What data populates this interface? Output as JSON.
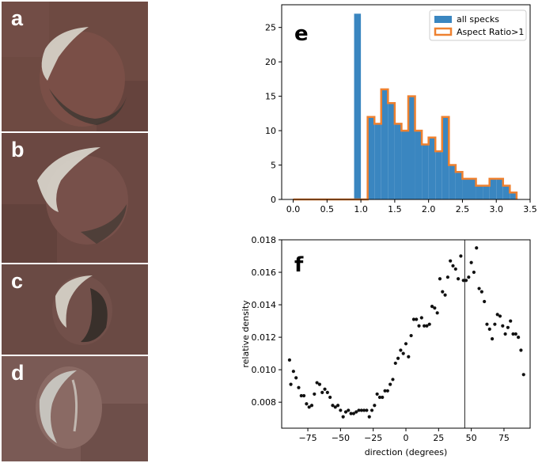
{
  "panels": {
    "a": "a",
    "b": "b",
    "c": "c",
    "d": "d"
  },
  "colors": {
    "background_rock": "#6e4a42",
    "crater_interior": "#7a4f47",
    "bright_ejecta": "#d9d6cc",
    "shadow": "#3a3530",
    "bar_fill": "#3a86c0",
    "step_outline": "#ee8130",
    "scatter_point": "#111111",
    "axis": "#000000"
  },
  "chart_data": [
    {
      "panel_label": "e",
      "type": "bar",
      "title": "",
      "xlabel": "",
      "ylabel": "",
      "xlim": [
        -0.17,
        3.5
      ],
      "ylim": [
        0,
        28.3
      ],
      "x_ticks": [
        0.0,
        0.5,
        1.0,
        1.5,
        2.0,
        2.5,
        3.0,
        3.5
      ],
      "x_tick_labels": [
        "0.0",
        "0.5",
        "1.0",
        "1.5",
        "2.0",
        "2.5",
        "3.0",
        "3.5"
      ],
      "y_ticks": [
        0,
        5,
        10,
        15,
        20,
        25
      ],
      "y_tick_labels": [
        "0",
        "5",
        "10",
        "15",
        "20",
        "25"
      ],
      "bin_width": 0.1,
      "legend": {
        "placement": "top-right",
        "entries": [
          "all specks",
          "Aspect Ratio>1"
        ]
      },
      "series": [
        {
          "name": "all specks",
          "style": "filled bars",
          "bin_starts": [
            0.9,
            1.0,
            1.1,
            1.2,
            1.3,
            1.4,
            1.5,
            1.6,
            1.7,
            1.8,
            1.9,
            2.0,
            2.1,
            2.2,
            2.3,
            2.4,
            2.5,
            2.6,
            2.7,
            2.8,
            2.9,
            3.0,
            3.1,
            3.2
          ],
          "values": [
            27,
            0,
            12,
            11,
            16,
            14,
            11,
            10,
            15,
            10,
            8,
            9,
            7,
            12,
            5,
            4,
            3,
            3,
            2,
            2,
            3,
            3,
            2,
            1
          ]
        },
        {
          "name": "Aspect Ratio>1",
          "style": "step outline",
          "bin_starts": [
            0.0,
            0.1,
            0.2,
            0.3,
            0.4,
            0.5,
            0.6,
            0.7,
            0.8,
            0.9,
            1.0,
            1.1,
            1.2,
            1.3,
            1.4,
            1.5,
            1.6,
            1.7,
            1.8,
            1.9,
            2.0,
            2.1,
            2.2,
            2.3,
            2.4,
            2.5,
            2.6,
            2.7,
            2.8,
            2.9,
            3.0,
            3.1,
            3.2
          ],
          "values": [
            0,
            0,
            0,
            0,
            0,
            0,
            0,
            0,
            0,
            0,
            0,
            12,
            11,
            16,
            14,
            11,
            10,
            15,
            10,
            8,
            9,
            7,
            12,
            5,
            4,
            3,
            3,
            2,
            2,
            3,
            3,
            2,
            1
          ]
        }
      ]
    },
    {
      "panel_label": "f",
      "type": "scatter",
      "title": "",
      "xlabel": "direction (degrees)",
      "ylabel": "relative density",
      "xlim": [
        -95,
        95
      ],
      "ylim": [
        0.0064,
        0.018
      ],
      "x_ticks": [
        -75,
        -50,
        -25,
        0,
        25,
        50,
        75
      ],
      "x_tick_labels": [
        "−75",
        "−50",
        "−25",
        "0",
        "25",
        "50",
        "75"
      ],
      "y_ticks": [
        0.008,
        0.01,
        0.012,
        0.014,
        0.016,
        0.018
      ],
      "y_tick_labels": [
        "0.008",
        "0.010",
        "0.012",
        "0.014",
        "0.016",
        "0.018"
      ],
      "vertical_line_x": 45,
      "points": [
        [
          -89,
          0.0106
        ],
        [
          -88,
          0.0091
        ],
        [
          -86,
          0.0099
        ],
        [
          -84,
          0.0095
        ],
        [
          -82,
          0.0089
        ],
        [
          -80,
          0.0084
        ],
        [
          -78,
          0.0084
        ],
        [
          -76,
          0.0079
        ],
        [
          -74,
          0.0077
        ],
        [
          -72,
          0.0078
        ],
        [
          -70,
          0.0085
        ],
        [
          -68,
          0.0092
        ],
        [
          -66,
          0.0091
        ],
        [
          -64,
          0.0086
        ],
        [
          -62,
          0.0088
        ],
        [
          -60,
          0.0086
        ],
        [
          -58,
          0.0083
        ],
        [
          -56,
          0.0078
        ],
        [
          -54,
          0.0077
        ],
        [
          -52,
          0.0078
        ],
        [
          -50,
          0.0075
        ],
        [
          -48,
          0.0071
        ],
        [
          -46,
          0.0074
        ],
        [
          -44,
          0.0075
        ],
        [
          -42,
          0.0073
        ],
        [
          -40,
          0.0073
        ],
        [
          -38,
          0.0074
        ],
        [
          -36,
          0.0075
        ],
        [
          -34,
          0.0075
        ],
        [
          -32,
          0.0075
        ],
        [
          -30,
          0.0075
        ],
        [
          -28,
          0.0071
        ],
        [
          -26,
          0.0075
        ],
        [
          -24,
          0.0078
        ],
        [
          -22,
          0.0085
        ],
        [
          -20,
          0.0083
        ],
        [
          -18,
          0.0083
        ],
        [
          -16,
          0.0087
        ],
        [
          -14,
          0.0087
        ],
        [
          -12,
          0.0091
        ],
        [
          -10,
          0.0094
        ],
        [
          -8,
          0.0104
        ],
        [
          -6,
          0.0107
        ],
        [
          -4,
          0.0112
        ],
        [
          -2,
          0.011
        ],
        [
          0,
          0.0116
        ],
        [
          2,
          0.0108
        ],
        [
          4,
          0.0121
        ],
        [
          6,
          0.0131
        ],
        [
          8,
          0.0131
        ],
        [
          10,
          0.0127
        ],
        [
          12,
          0.0132
        ],
        [
          14,
          0.0127
        ],
        [
          16,
          0.0127
        ],
        [
          18,
          0.0128
        ],
        [
          20,
          0.0139
        ],
        [
          22,
          0.0138
        ],
        [
          24,
          0.0135
        ],
        [
          26,
          0.0156
        ],
        [
          28,
          0.0148
        ],
        [
          30,
          0.0146
        ],
        [
          32,
          0.0157
        ],
        [
          34,
          0.0167
        ],
        [
          36,
          0.0164
        ],
        [
          38,
          0.0162
        ],
        [
          40,
          0.0156
        ],
        [
          42,
          0.017
        ],
        [
          44,
          0.0155
        ],
        [
          46,
          0.0155
        ],
        [
          48,
          0.0157
        ],
        [
          50,
          0.0166
        ],
        [
          52,
          0.016
        ],
        [
          54,
          0.0175
        ],
        [
          56,
          0.015
        ],
        [
          58,
          0.0148
        ],
        [
          60,
          0.0142
        ],
        [
          62,
          0.0128
        ],
        [
          64,
          0.0125
        ],
        [
          66,
          0.0119
        ],
        [
          68,
          0.0128
        ],
        [
          70,
          0.0134
        ],
        [
          72,
          0.0133
        ],
        [
          74,
          0.0127
        ],
        [
          76,
          0.0122
        ],
        [
          78,
          0.0126
        ],
        [
          80,
          0.013
        ],
        [
          82,
          0.0122
        ],
        [
          84,
          0.0122
        ],
        [
          86,
          0.012
        ],
        [
          88,
          0.0112
        ],
        [
          90,
          0.0097
        ]
      ]
    }
  ]
}
